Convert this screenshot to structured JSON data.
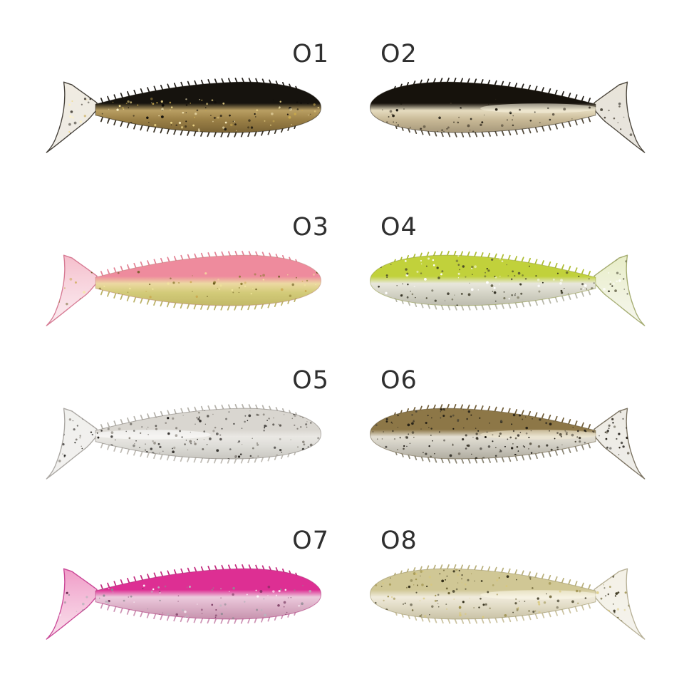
{
  "page": {
    "background": "#ffffff",
    "label_color": "#2f2f2f"
  },
  "lures": [
    {
      "id": "O1",
      "label": "O1",
      "colorway": "black-gold-glitter",
      "facing": "tail-left",
      "speck_count": 160,
      "speck_area": "belly",
      "colors": {
        "back": "#16130e",
        "belly_light": "#b99f63",
        "belly": "#9c8147",
        "belly_deep": "#7a6334",
        "outline": "rgba(20,16,8,0.5)",
        "rib_top": "#1c1813",
        "rib_bottom": "#2e2619",
        "tail_top": "rgba(228,220,202,0.55)",
        "tail_bottom": "rgba(205,195,175,0.30)",
        "tail_edge": "rgba(25,20,12,0.8)",
        "sheen": null,
        "specks": [
          "#0d0b08",
          "#f0d98a",
          "#c7a84e",
          "#fff3c4",
          "#1a150d"
        ]
      }
    },
    {
      "id": "O2",
      "label": "O2",
      "colorway": "black-pearl",
      "facing": "tail-right",
      "speck_count": 100,
      "speck_area": "belly",
      "colors": {
        "back": "#16120c",
        "belly_light": "#e6dcc0",
        "belly": "#c9ba97",
        "belly_deep": "#a6977a",
        "outline": "rgba(25,20,10,0.5)",
        "rib_top": "#1a160f",
        "rib_bottom": "#4a4232",
        "tail_top": "rgba(212,203,182,0.5)",
        "tail_bottom": "rgba(182,172,152,0.3)",
        "tail_edge": "rgba(32,26,15,0.8)",
        "sheen": "#f6f0dd",
        "specks": [
          "#12100a",
          "#3a3225",
          "#241f14"
        ]
      }
    },
    {
      "id": "O3",
      "label": "O3",
      "colorway": "pink-chartreuse-glitter",
      "facing": "tail-left",
      "speck_count": 90,
      "speck_area": "belly",
      "colors": {
        "back": "#ee8b9d",
        "belly_light": "#ecd9a2",
        "belly": "#d3cb79",
        "belly_deep": "#c2b968",
        "outline": "rgba(180,120,110,0.45)",
        "rib_top": "#e27d90",
        "rib_bottom": "#b8ae60",
        "tail_top": "rgba(242,173,190,0.8)",
        "tail_bottom": "rgba(246,214,224,0.45)",
        "tail_edge": "rgba(205,95,125,0.8)",
        "sheen": null,
        "specks": [
          "#8a7a30",
          "#f5e9a0",
          "#6b5b20",
          "#caa84e"
        ]
      }
    },
    {
      "id": "O4",
      "label": "O4",
      "colorway": "chartreuse-silver-glitter",
      "facing": "tail-right",
      "speck_count": 200,
      "speck_area": "full",
      "colors": {
        "back": "#c1d13b",
        "belly_light": "#e8e7dc",
        "belly": "#d6d5c8",
        "belly_deep": "#bdbcae",
        "outline": "rgba(140,150,60,0.5)",
        "rib_top": "#aaba2a",
        "rib_bottom": "#b4b4a4",
        "tail_top": "rgba(212,222,152,0.55)",
        "tail_bottom": "rgba(228,230,204,0.35)",
        "tail_edge": "rgba(130,140,60,0.7)",
        "sheen": null,
        "specks": [
          "#2e2c20",
          "#555238",
          "#ffffff",
          "#3c3a28"
        ]
      }
    },
    {
      "id": "O5",
      "label": "O5",
      "colorway": "clear-smoke-pepper",
      "facing": "tail-left",
      "speck_count": 220,
      "speck_area": "full",
      "colors": {
        "back": "#d9d6d0",
        "belly_light": "#eae8e4",
        "belly": "#deddd8",
        "belly_deep": "#c9c7c1",
        "outline": "rgba(130,125,118,0.6)",
        "rib_top": "#b3afa8",
        "rib_bottom": "#bdb9b2",
        "tail_top": "rgba(226,224,219,0.5)",
        "tail_bottom": "rgba(214,212,206,0.3)",
        "tail_edge": "rgba(120,115,108,0.6)",
        "sheen": "#ffffff",
        "specks": [
          "#1c1a17",
          "#55514a",
          "#8b867e",
          "#2a2723"
        ]
      }
    },
    {
      "id": "O6",
      "label": "O6",
      "colorway": "golden-shiner-pepper",
      "facing": "tail-right",
      "speck_count": 260,
      "speck_area": "full",
      "colors": {
        "back": "#8d7747",
        "belly_light": "#e4e0d4",
        "belly": "#cfccc2",
        "belly_deep": "#b0ac9f",
        "outline": "rgba(90,75,45,0.5)",
        "rib_top": "#6b5731",
        "rib_bottom": "#86816f",
        "tail_top": "rgba(216,211,196,0.45)",
        "tail_bottom": "rgba(200,195,180,0.28)",
        "tail_edge": "rgba(70,58,35,0.7)",
        "sheen": "#f2ead2",
        "specks": [
          "#14110c",
          "#2f2a1f",
          "#4a4434",
          "#1d1912"
        ]
      }
    },
    {
      "id": "O7",
      "label": "O7",
      "colorway": "hot-pink-silver-glitter",
      "facing": "tail-left",
      "speck_count": 130,
      "speck_area": "belly",
      "colors": {
        "back": "#dd2f93",
        "belly_light": "#eccadd",
        "belly": "#ddb3c9",
        "belly_deep": "#c793ae",
        "outline": "rgba(170,40,115,0.55)",
        "rib_top": "#c02179",
        "rib_bottom": "#cc8fb2",
        "tail_top": "rgba(236,130,185,0.8)",
        "tail_bottom": "rgba(243,192,216,0.5)",
        "tail_edge": "rgba(190,35,130,0.8)",
        "sheen": null,
        "specks": [
          "#8e8a92",
          "#ffffff",
          "#6b2a52",
          "#b9b4bd"
        ]
      }
    },
    {
      "id": "O8",
      "label": "O8",
      "colorway": "gold-pearl-glitter",
      "facing": "tail-right",
      "speck_count": 220,
      "speck_area": "full",
      "colors": {
        "back": "#d0c795",
        "belly_light": "#f0ebdc",
        "belly": "#e2dcc6",
        "belly_deep": "#c9c2a6",
        "outline": "rgba(150,140,95,0.55)",
        "rib_top": "#b7ad77",
        "rib_bottom": "#c9c09c",
        "tail_top": "rgba(233,227,206,0.5)",
        "tail_bottom": "rgba(222,216,196,0.3)",
        "tail_edge": "rgba(140,130,90,0.6)",
        "sheen": "#fbf7e8",
        "specks": [
          "#6b6234",
          "#3d3820",
          "#d9c87a",
          "#9c8f4a",
          "#2e2a16"
        ]
      }
    }
  ]
}
